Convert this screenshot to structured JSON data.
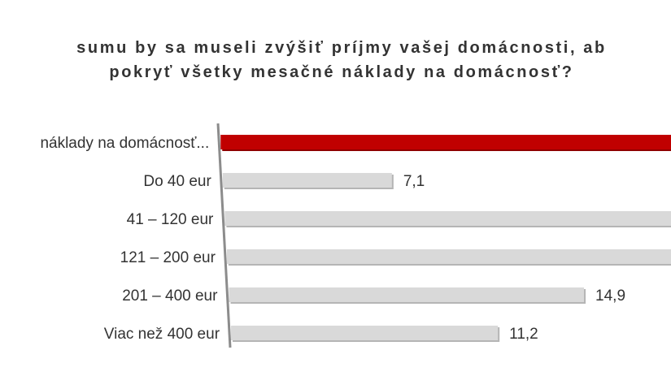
{
  "title_lines": [
    "sumu by sa museli zvýšiť príjmy vašej domácnosti, ab",
    "pokryť všetky mesačné náklady na domácnosť?"
  ],
  "chart_data": {
    "type": "bar",
    "orientation": "horizontal",
    "title": "sumu by sa museli zvýšiť príjmy vašej domácnosti, ab pokryť všetky mesačné náklady na domácnosť?",
    "categories": [
      "náklady na domácnosť...",
      "Do 40 eur",
      "41 – 120 eur",
      "121 – 200 eur",
      "201 – 400 eur",
      "Viac než 400 eur"
    ],
    "values": [
      null,
      7.1,
      null,
      null,
      14.9,
      11.2
    ],
    "value_labels": [
      "",
      "7,1",
      "",
      "",
      "14,9",
      "11,2"
    ],
    "extends_beyond_view": [
      true,
      false,
      true,
      true,
      false,
      false
    ],
    "highlight_index": 0,
    "colors": {
      "highlight": "#c00000",
      "bar": "#d9d9d9",
      "axis": "#8c8c8c",
      "text": "#333333"
    },
    "grid": false,
    "legend": "none"
  }
}
